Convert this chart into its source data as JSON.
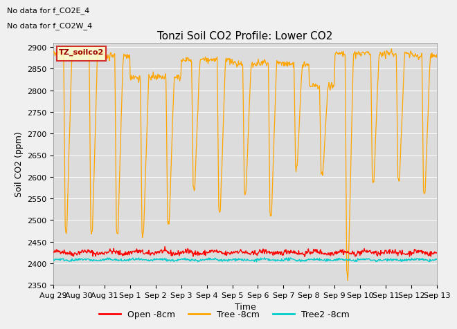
{
  "title": "Tonzi Soil CO2 Profile: Lower CO2",
  "ylabel": "Soil CO2 (ppm)",
  "xlabel": "Time",
  "no_data_text": [
    "No data for f_CO2E_4",
    "No data for f_CO2W_4"
  ],
  "legend_label": "TZ_soilco2",
  "ylim": [
    2350,
    2910
  ],
  "yticks": [
    2350,
    2400,
    2450,
    2500,
    2550,
    2600,
    2650,
    2700,
    2750,
    2800,
    2850,
    2900
  ],
  "xtick_labels": [
    "Aug 29",
    "Aug 30",
    "Aug 31",
    "Sep 1",
    "Sep 2",
    "Sep 3",
    "Sep 4",
    "Sep 5",
    "Sep 6",
    "Sep 7",
    "Sep 8",
    "Sep 9",
    "Sep 10",
    "Sep 11",
    "Sep 12",
    "Sep 13"
  ],
  "open_color": "#FF0000",
  "tree_color": "#FFA500",
  "tree2_color": "#00CCCC",
  "bg_color": "#E8E8E8",
  "plot_bg_color": "#DCDCDC",
  "series_labels": [
    "Open -8cm",
    "Tree -8cm",
    "Tree2 -8cm"
  ],
  "title_fontsize": 11,
  "label_fontsize": 9,
  "tick_fontsize": 8,
  "n_days": 15,
  "drop_depths": [
    2475,
    2470,
    2470,
    2465,
    2490,
    2570,
    2520,
    2565,
    2510,
    2620,
    2600,
    2370,
    2590,
    2590,
    2560
  ],
  "peak_heights": [
    2885,
    2885,
    2880,
    2830,
    2830,
    2870,
    2870,
    2860,
    2865,
    2860,
    2810,
    2885,
    2885,
    2885,
    2880
  ],
  "open_base": 2425,
  "tree2_base": 2408
}
